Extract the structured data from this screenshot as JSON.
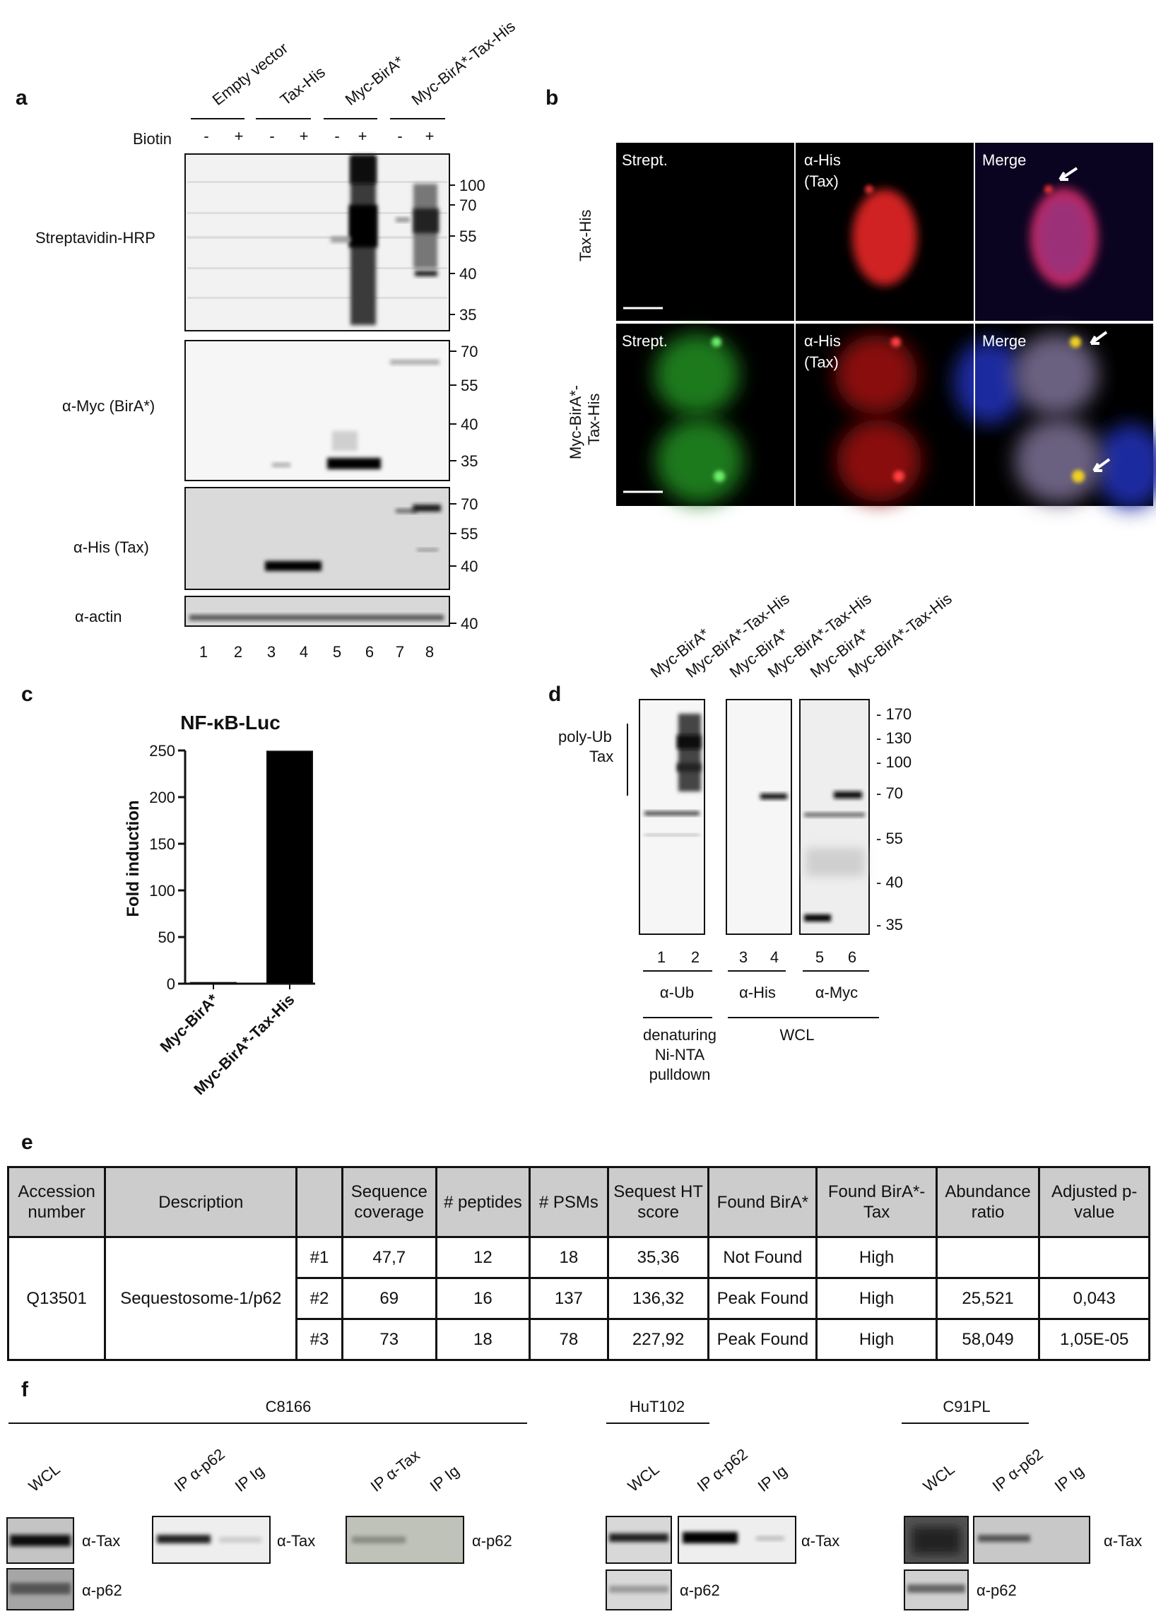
{
  "panels": {
    "a": {
      "letter": "a",
      "lane_headers": [
        "Empty vector",
        "Tax-His",
        "Myc-BirA*",
        "Myc-BirA*-Tax-His"
      ],
      "biotin_label": "Biotin",
      "biotin_signs": [
        "-",
        "+",
        "-",
        "+",
        "-",
        "+",
        "-",
        "+"
      ],
      "blots": [
        {
          "label": "Streptavidin-HRP",
          "markers": [
            "100",
            "70",
            "55",
            "40",
            "35"
          ]
        },
        {
          "label": "α-Myc (BirA*)",
          "markers": [
            "70",
            "55",
            "40",
            "35"
          ]
        },
        {
          "label": "α-His (Tax)",
          "markers": [
            "70",
            "55",
            "40"
          ]
        },
        {
          "label": "α-actin",
          "markers": [
            "40"
          ]
        }
      ],
      "lane_numbers": [
        "1",
        "2",
        "3",
        "4",
        "5",
        "6",
        "7",
        "8"
      ]
    },
    "b": {
      "letter": "b",
      "row_labels": [
        "Tax-His",
        "Myc-BirA*-\nTax-His"
      ],
      "row_label_lines": [
        [
          "Tax-His"
        ],
        [
          "Myc-BirA*-",
          "Tax-His"
        ]
      ],
      "col_labels": [
        "Strept.",
        "α-His",
        "(Tax)",
        "Merge"
      ]
    },
    "c": {
      "letter": "c"
    },
    "d": {
      "letter": "d",
      "lane_headers": [
        "Myc-BirA*",
        "Myc-BirA*-Tax-His",
        "Myc-BirA*",
        "Myc-BirA*-Tax-His",
        "Myc-BirA*",
        "Myc-BirA*-Tax-His"
      ],
      "side_label": [
        "poly-Ub",
        "Tax"
      ],
      "markers": [
        "- 170",
        "- 130",
        "- 100",
        "- 70",
        "- 55",
        "- 40",
        "- 35"
      ],
      "lane_numbers": [
        "1",
        "2",
        "3",
        "4",
        "5",
        "6"
      ],
      "antibodies": [
        "α-Ub",
        "α-His",
        "α-Myc"
      ],
      "bottom_left": [
        "denaturing",
        "Ni-NTA",
        "pulldown"
      ],
      "bottom_right": "WCL"
    },
    "e": {
      "letter": "e",
      "headers": [
        "Accession number",
        "Description",
        "",
        "Sequence coverage",
        "# peptides",
        "# PSMs",
        "Sequest HT score",
        "Found BirA*",
        "Found BirA*-Tax",
        "Abundance ratio",
        "Adjusted p-value"
      ],
      "accession": "Q13501",
      "description": "Sequestosome-1/p62",
      "rows": [
        [
          "#1",
          "47,7",
          "12",
          "18",
          "35,36",
          "Not Found",
          "High",
          "",
          ""
        ],
        [
          "#2",
          "69",
          "16",
          "137",
          "136,32",
          "Peak Found",
          "High",
          "25,521",
          "0,043"
        ],
        [
          "#3",
          "73",
          "18",
          "78",
          "227,92",
          "Peak Found",
          "High",
          "58,049",
          "1,05E-05"
        ]
      ]
    },
    "f": {
      "letter": "f",
      "cell_lines": [
        "C8166",
        "HuT102",
        "C91PL"
      ],
      "lane_labels": {
        "wcl": "WCL",
        "ip_p62": "IP α-p62",
        "ip_ig": "IP Ig",
        "ip_tax": "IP α-Tax"
      },
      "blot_labels": {
        "tax": "α-Tax",
        "p62": "α-p62"
      }
    }
  },
  "chart_data": {
    "type": "bar",
    "title": "NF-κB-Luc",
    "categories": [
      "Myc-BirA*",
      "Myc-BirA*-Tax-His"
    ],
    "values": [
      1,
      249
    ],
    "colors": [
      "#ffffff",
      "#000000"
    ],
    "ylabel": "Fold induction",
    "xlabel": "",
    "ylim": [
      0,
      250
    ],
    "yticks": [
      0,
      50,
      100,
      150,
      200,
      250
    ],
    "grid": false,
    "legend": "none"
  }
}
